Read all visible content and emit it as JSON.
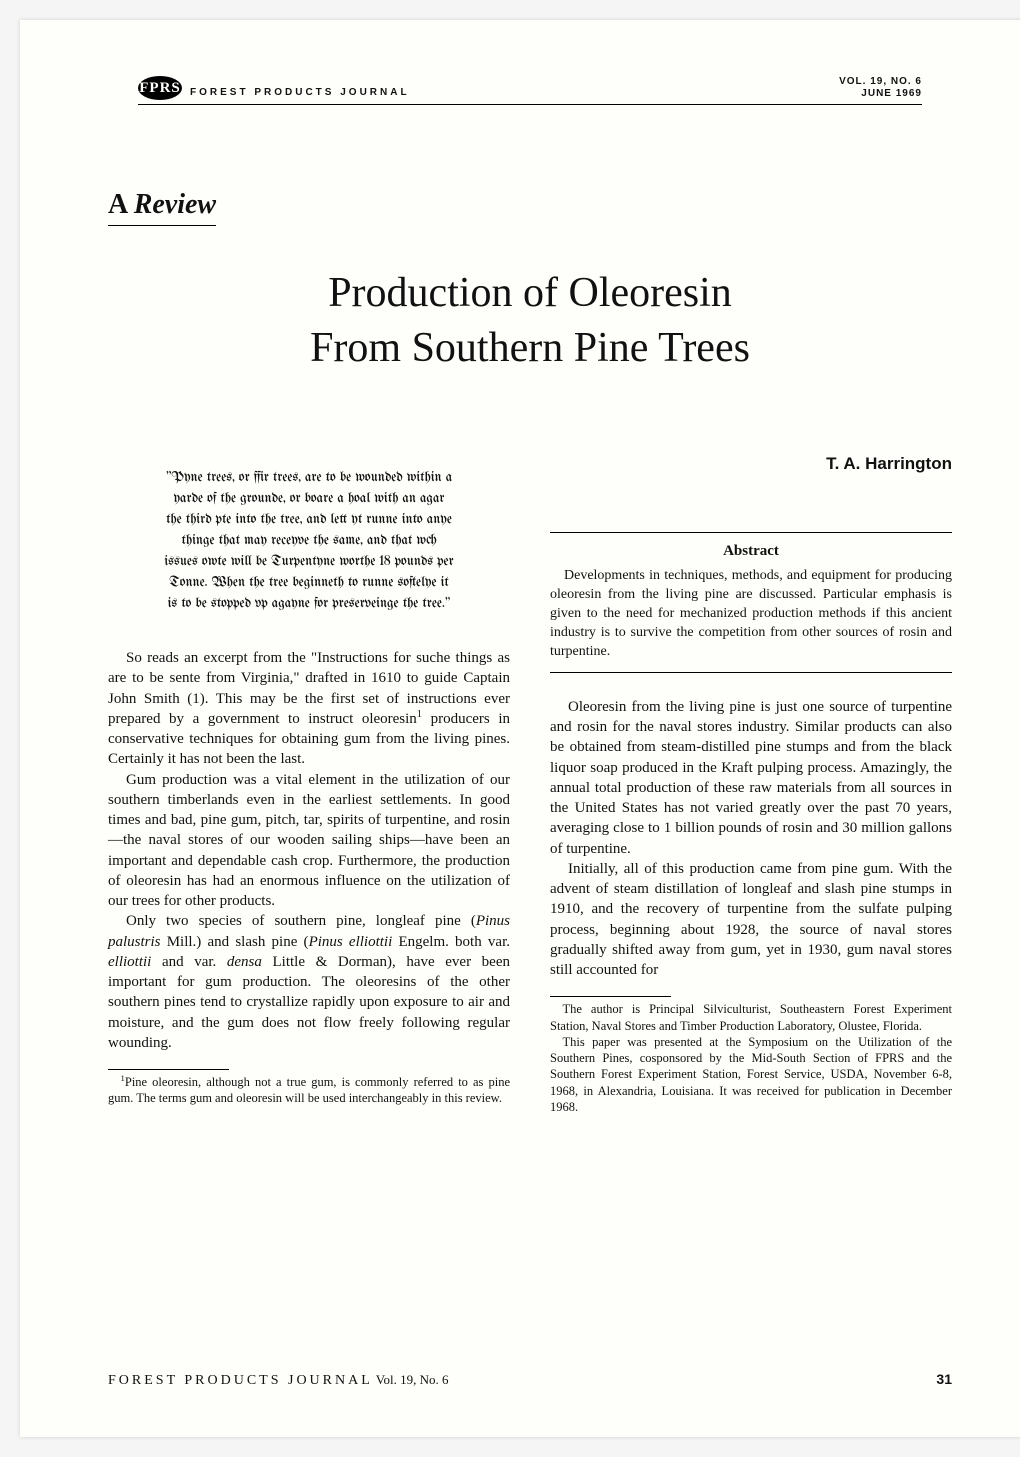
{
  "masthead": {
    "logo_text": "FPRS",
    "journal_name": "FOREST PRODUCTS JOURNAL",
    "vol_line": "VOL. 19, NO. 6",
    "date_line": "JUNE 1969"
  },
  "review_label_a": "A ",
  "review_label_b": "Review",
  "title_line1": "Production of Oleoresin",
  "title_line2": "From Southern Pine Trees",
  "author": "T. A. Harrington",
  "epigraph": "\"Pyne trees, or ffir trees, are to be wounded within a yarde of the grounde, or boare a hoal with an agar the third pte into the tree, and lett yt runne into anye thinge that may receyve the same, and that wch issues owte will be Turpentyne worthe 18 pounds per Tonne. When the tree beginneth to runne softelye it is to be stopped vp agayne for preserveinge the tree.\"",
  "abstract_title": "Abstract",
  "abstract_text": "Developments in techniques, methods, and equipment for producing oleoresin from the living pine are discussed. Particular emphasis is given to the need for mechanized production methods if this ancient industry is to survive the competition from other sources of rosin and turpentine.",
  "left": {
    "p1_a": "So reads an excerpt from the \"Instructions for suche things as are to be sente from Virginia,\" drafted in 1610 to guide Captain John Smith (1). This may be the first set of instructions ever prepared by a government to instruct oleoresin",
    "p1_sup": "1",
    "p1_b": " producers in conservative techniques for obtaining gum from the living pines. Certainly it has not been the last.",
    "p2": "Gum production was a vital element in the utilization of our southern timberlands even in the earliest settlements. In good times and bad, pine gum, pitch, tar, spirits of turpentine, and rosin—the naval stores of our wooden sailing ships—have been an important and dependable cash crop. Furthermore, the production of oleoresin has had an enormous influence on the utilization of our trees for other products.",
    "p3_a": "Only two species of southern pine, longleaf pine (",
    "p3_i1": "Pinus palustris",
    "p3_b": " Mill.) and slash pine (",
    "p3_i2": "Pinus elliottii",
    "p3_c": " Engelm. both var. ",
    "p3_i3": "elliottii",
    "p3_d": " and var. ",
    "p3_i4": "densa",
    "p3_e": " Little & Dorman), have ever been important for gum production. The oleoresins of the other southern pines tend to crystallize rapidly upon exposure to air and moisture, and the gum does not flow freely following regular wounding.",
    "footnote_sup": "1",
    "footnote": "Pine oleoresin, although not a true gum, is commonly referred to as pine gum. The terms gum and oleoresin will be used interchangeably in this review."
  },
  "right": {
    "p1": "Oleoresin from the living pine is just one source of turpentine and rosin for the naval stores industry. Similar products can also be obtained from steam-distilled pine stumps and from the black liquor soap produced in the Kraft pulping process. Amazingly, the annual total production of these raw materials from all sources in the United States has not varied greatly over the past 70 years, averaging close to 1 billion pounds of rosin and 30 million gallons of turpentine.",
    "p2": "Initially, all of this production came from pine gum. With the advent of steam distillation of longleaf and slash pine stumps in 1910, and the recovery of turpentine from the sulfate pulping process, beginning about 1928, the source of naval stores gradually shifted away from gum, yet in 1930, gum naval stores still accounted for",
    "footnote_a": "The author is Principal Silviculturist, Southeastern Forest Experiment Station, Naval Stores and Timber Production Laboratory, Olustee, Florida.",
    "footnote_b": "This paper was presented at the Symposium on the Utilization of the Southern Pines, cosponsored by the Mid-South Section of FPRS and the Southern Forest Experiment Station, Forest Service, USDA, November 6-8, 1968, in Alexandria, Louisiana. It was received for publication in December 1968."
  },
  "footer": {
    "journal": "FOREST PRODUCTS JOURNAL",
    "issue": " Vol. 19, No. 6",
    "page": "31"
  }
}
